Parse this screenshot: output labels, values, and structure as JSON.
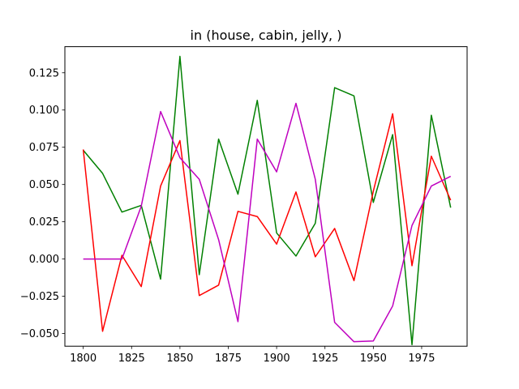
{
  "chart_data": {
    "type": "line",
    "title": "in (house, cabin, jelly, )",
    "xlabel": "",
    "ylabel": "",
    "xlim": [
      1790.5,
      1998.5
    ],
    "ylim": [
      -0.0585,
      0.1425
    ],
    "grid": false,
    "x_ticks": [
      1800,
      1825,
      1850,
      1875,
      1900,
      1925,
      1950,
      1975
    ],
    "x_tick_labels": [
      "1800",
      "1825",
      "1850",
      "1875",
      "1900",
      "1925",
      "1950",
      "1975"
    ],
    "y_ticks": [
      -0.05,
      -0.025,
      0.0,
      0.025,
      0.05,
      0.075,
      0.1,
      0.125
    ],
    "y_tick_labels": [
      "−0.050",
      "−0.025",
      "0.000",
      "0.025",
      "0.050",
      "0.075",
      "0.100",
      "0.125"
    ],
    "x": [
      1800,
      1810,
      1820,
      1830,
      1840,
      1850,
      1860,
      1870,
      1880,
      1890,
      1900,
      1910,
      1920,
      1930,
      1940,
      1950,
      1960,
      1970,
      1980,
      1990
    ],
    "series": [
      {
        "color": "#008000",
        "values": [
          0.073,
          0.0575,
          0.0315,
          0.036,
          -0.0135,
          0.136,
          -0.0105,
          0.0805,
          0.0435,
          0.1065,
          0.0175,
          0.002,
          0.024,
          0.115,
          0.1095,
          0.038,
          0.0835,
          -0.0575,
          0.0965,
          0.0345
        ]
      },
      {
        "color": "#ff0000",
        "values": [
          0.0735,
          -0.0485,
          0.0025,
          -0.0185,
          0.049,
          0.0795,
          -0.0245,
          -0.0175,
          0.032,
          0.0285,
          0.01,
          0.045,
          0.0015,
          0.0205,
          -0.0145,
          0.0455,
          0.0975,
          -0.0045,
          0.069,
          0.0395
        ]
      },
      {
        "color": "#bf00bf",
        "values": [
          0.0,
          0.0,
          0.0,
          0.0355,
          0.099,
          0.068,
          0.0535,
          0.013,
          -0.042,
          0.0805,
          0.0585,
          0.1045,
          0.0535,
          -0.0425,
          -0.0555,
          -0.055,
          -0.0315,
          0.0225,
          0.049,
          0.0555
        ]
      }
    ]
  }
}
